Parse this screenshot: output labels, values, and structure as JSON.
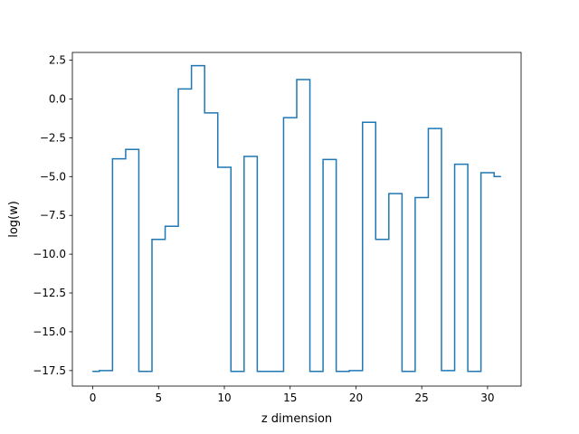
{
  "chart_data": {
    "type": "line",
    "drawstyle": "steps-mid",
    "xlabel": "z dimension",
    "ylabel": "log(w)",
    "xlim": [
      -1.55,
      32.55
    ],
    "ylim": [
      -18.5,
      3.0
    ],
    "xticks": [
      0,
      5,
      10,
      15,
      20,
      25,
      30
    ],
    "xtick_labels": [
      "0",
      "5",
      "10",
      "15",
      "20",
      "25",
      "30"
    ],
    "yticks": [
      -17.5,
      -15.0,
      -12.5,
      -10.0,
      -7.5,
      -5.0,
      -2.5,
      0.0,
      2.5
    ],
    "ytick_labels": [
      "−17.5",
      "−15.0",
      "−12.5",
      "−10.0",
      "−7.5",
      "−5.0",
      "−2.5",
      "0.0",
      "2.5"
    ],
    "grid": false,
    "series": [
      {
        "color": "#1f77b4",
        "x": [
          0,
          1,
          2,
          3,
          4,
          5,
          6,
          7,
          8,
          9,
          10,
          11,
          12,
          13,
          14,
          15,
          16,
          17,
          18,
          19,
          20,
          21,
          22,
          23,
          24,
          25,
          26,
          27,
          28,
          29,
          30,
          31
        ],
        "y": [
          -17.55,
          -17.5,
          -3.85,
          -3.25,
          -17.55,
          -9.05,
          -8.2,
          0.65,
          2.15,
          -0.9,
          -4.4,
          -17.55,
          -3.7,
          -17.55,
          -17.55,
          -1.2,
          1.25,
          -17.55,
          -3.9,
          -17.55,
          -17.5,
          -1.5,
          -9.05,
          -6.1,
          -17.55,
          -6.35,
          -1.9,
          -17.5,
          -4.2,
          -17.55,
          -4.75,
          -5.0
        ]
      }
    ]
  }
}
